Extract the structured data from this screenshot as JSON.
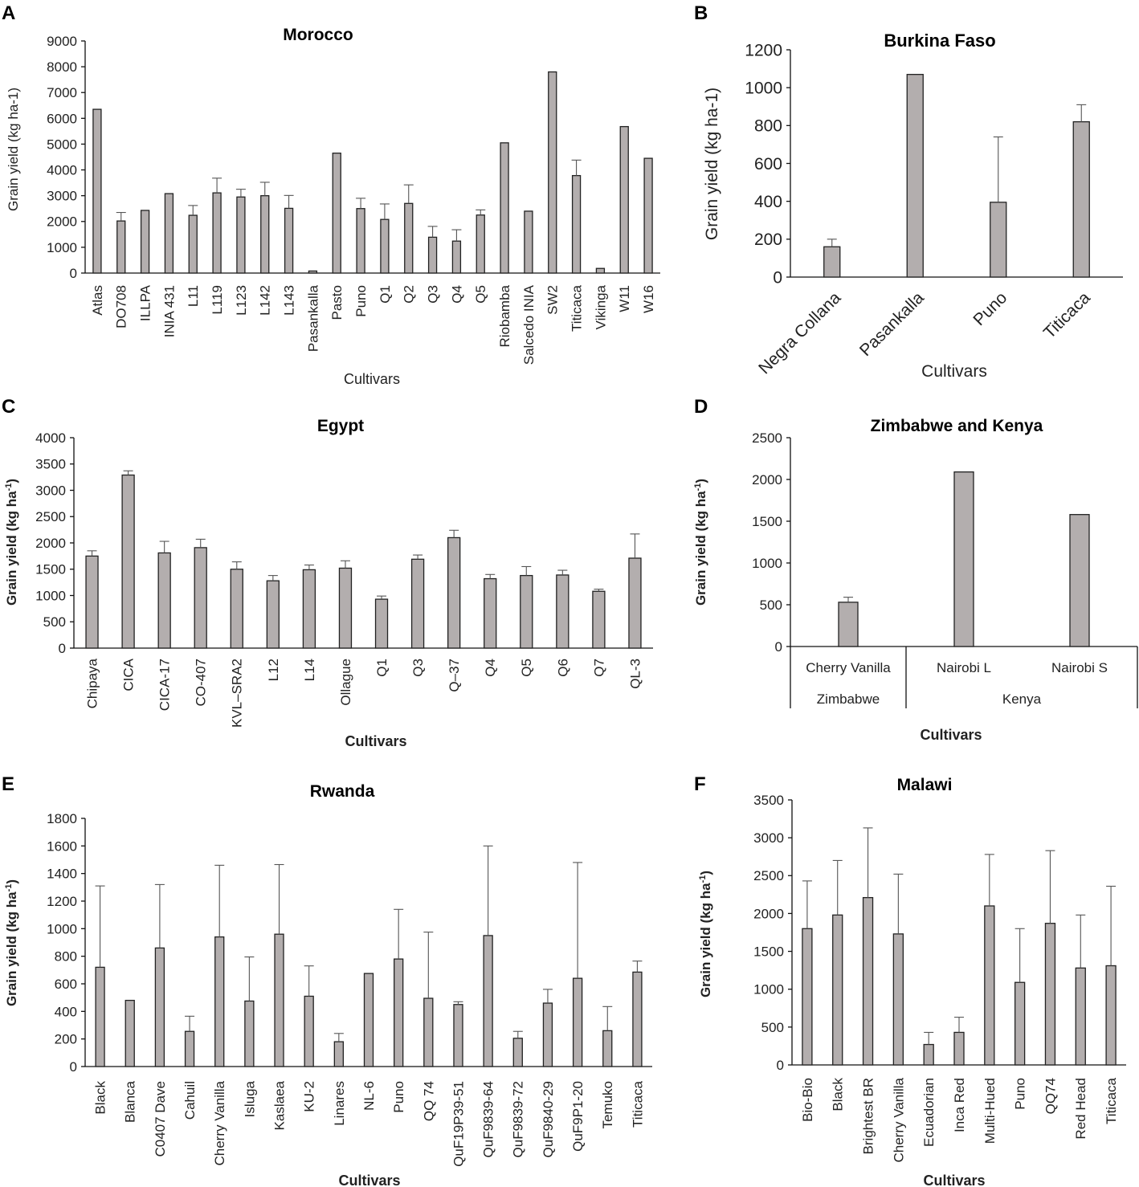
{
  "colors": {
    "bar": "#b3aeae",
    "bar_edge": "#222222",
    "axis": "#111111",
    "text": "#222222"
  },
  "chart_data": [
    {
      "id": "A",
      "letter": "A",
      "type": "bar",
      "title": "Morocco",
      "xlabel": "Cultivars",
      "ylabel": "Grain yield (kg ha-1)",
      "ylim": [
        0,
        9000
      ],
      "yticks": [
        0,
        1000,
        2000,
        3000,
        4000,
        5000,
        6000,
        7000,
        8000,
        9000
      ],
      "categories": [
        "Atlas",
        "DO708",
        "ILLPA",
        "INIA 431",
        "L11",
        "L119",
        "L123",
        "L142",
        "L143",
        "Pasankalla",
        "Pasto",
        "Puno",
        "Q1",
        "Q2",
        "Q3",
        "Q4",
        "Q5",
        "Riobamba",
        "Salcedo INIA",
        "SW2",
        "Titicaca",
        "Vikinga",
        "W11",
        "W16"
      ],
      "values": [
        6350,
        2020,
        2430,
        3080,
        2240,
        3110,
        2950,
        3000,
        2510,
        80,
        4650,
        2500,
        2080,
        2700,
        1390,
        1240,
        2250,
        5050,
        2400,
        7800,
        3780,
        180,
        5680,
        4450
      ],
      "errors": [
        0,
        330,
        0,
        0,
        380,
        570,
        300,
        520,
        500,
        0,
        0,
        400,
        600,
        720,
        420,
        440,
        200,
        0,
        0,
        0,
        600,
        0,
        0,
        0
      ]
    },
    {
      "id": "B",
      "letter": "B",
      "type": "bar",
      "title": "Burkina Faso",
      "xlabel": "Cultivars",
      "ylabel": "Grain yield (kg ha-1)",
      "ylim": [
        0,
        1200
      ],
      "yticks": [
        0,
        200,
        400,
        600,
        800,
        1000,
        1200
      ],
      "categories": [
        "Negra Collana",
        "Pasankalla",
        "Puno",
        "Titicaca"
      ],
      "values": [
        160,
        1070,
        395,
        820
      ],
      "errors": [
        40,
        0,
        345,
        90
      ]
    },
    {
      "id": "C",
      "letter": "C",
      "type": "bar",
      "title": "Egypt",
      "xlabel": "Cultivars",
      "ylabel": "Grain yield (kg ha",
      "ylabel_sup": "-1",
      "ylim": [
        0,
        4000
      ],
      "yticks": [
        0,
        500,
        1000,
        1500,
        2000,
        2500,
        3000,
        3500,
        4000
      ],
      "categories": [
        "Chipaya",
        "CICA",
        "CICA-17",
        "CO-407",
        "KVL–SRA2",
        "L12",
        "L14",
        "Ollague",
        "Q1",
        "Q3",
        "Q–37",
        "Q4",
        "Q5",
        "Q6",
        "Q7",
        "QL-3"
      ],
      "values": [
        1750,
        3290,
        1810,
        1910,
        1500,
        1280,
        1490,
        1520,
        930,
        1690,
        2100,
        1320,
        1380,
        1390,
        1080,
        1710
      ],
      "errors": [
        100,
        80,
        220,
        160,
        140,
        100,
        90,
        140,
        60,
        80,
        140,
        80,
        170,
        90,
        40,
        460
      ]
    },
    {
      "id": "D",
      "letter": "D",
      "type": "bar",
      "title": "Zimbabwe and Kenya",
      "xlabel": "Cultivars",
      "ylabel": "Grain yield (kg ha",
      "ylabel_sup": "-1",
      "ylim": [
        0,
        2500
      ],
      "yticks": [
        0,
        500,
        1000,
        1500,
        2000,
        2500
      ],
      "categories": [
        "Cherry Vanilla",
        "Nairobi L",
        "Nairobi S"
      ],
      "values": [
        530,
        2090,
        1580
      ],
      "errors": [
        60,
        0,
        0
      ],
      "groups": [
        {
          "label": "Zimbabwe",
          "span": 1
        },
        {
          "label": "Kenya",
          "span": 2
        }
      ]
    },
    {
      "id": "E",
      "letter": "E",
      "type": "bar",
      "title": "Rwanda",
      "xlabel": "Cultivars",
      "ylabel": "Grain yield (kg ha",
      "ylabel_sup": "-1",
      "ylim": [
        0,
        1800
      ],
      "yticks": [
        0,
        200,
        400,
        600,
        800,
        1000,
        1200,
        1400,
        1600,
        1800
      ],
      "categories": [
        "Black",
        "Blanca",
        "C0407 Dave",
        "Cahuil",
        "Cherry Vanilla",
        "Isluga",
        "Kaslaea",
        "KU-2",
        "Linares",
        "NL-6",
        "Puno",
        "QQ 74",
        "QuF19P39-51",
        "QuF9839-64",
        "QuF9839-72",
        "QuF9840-29",
        "QuF9P1-20",
        "Temuko",
        "Titicaca"
      ],
      "values": [
        720,
        480,
        860,
        255,
        940,
        475,
        960,
        510,
        180,
        675,
        780,
        495,
        450,
        950,
        205,
        460,
        640,
        260,
        685
      ],
      "errors": [
        590,
        0,
        460,
        110,
        520,
        320,
        505,
        220,
        60,
        0,
        360,
        480,
        20,
        650,
        50,
        100,
        840,
        175,
        80
      ]
    },
    {
      "id": "F",
      "letter": "F",
      "type": "bar",
      "title": "Malawi",
      "xlabel": "Cultivars",
      "ylabel": "Grain yield (kg ha",
      "ylabel_sup": "-1",
      "ylim": [
        0,
        3500
      ],
      "yticks": [
        0,
        500,
        1000,
        1500,
        2000,
        2500,
        3000,
        3500
      ],
      "categories": [
        "Bio-Bio",
        "Black",
        "Brightest BR",
        "Cherry Vanilla",
        "Ecuadorian",
        "Inca Red",
        "Multi-Hued",
        "Puno",
        "QQ74",
        "Red Head",
        "Titicaca"
      ],
      "values": [
        1800,
        1980,
        2210,
        1730,
        270,
        430,
        2100,
        1090,
        1870,
        1280,
        1310
      ],
      "errors": [
        630,
        720,
        920,
        790,
        160,
        200,
        680,
        710,
        960,
        700,
        1050
      ]
    }
  ]
}
